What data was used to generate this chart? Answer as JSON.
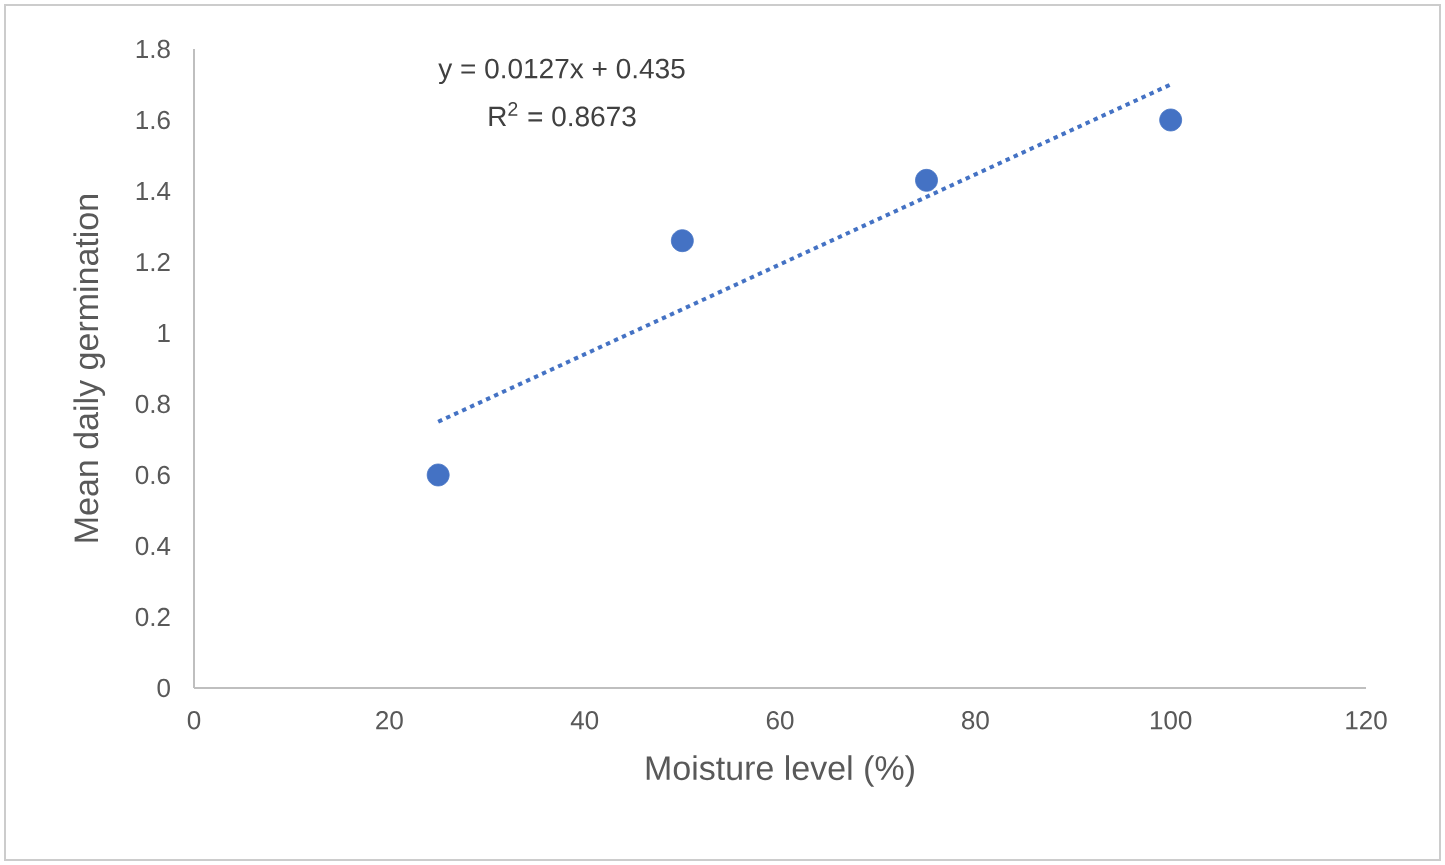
{
  "chart_data": {
    "type": "scatter",
    "xlabel": "Moisture level (%)",
    "ylabel": "Mean daily germination",
    "xlim": [
      0,
      120
    ],
    "xticks": [
      0,
      20,
      40,
      60,
      80,
      100,
      120
    ],
    "ylim": [
      0,
      1.8
    ],
    "yticks": [
      0,
      0.2,
      0.4,
      0.6,
      0.8,
      1,
      1.2,
      1.4,
      1.6,
      1.8
    ],
    "annotations": [
      "y = 0.0127x + 0.435",
      "R$^{2}$ = 0.8673"
    ],
    "series": [
      {
        "color": "#4472c4",
        "marker": "circle",
        "x": [
          25,
          50,
          75,
          100
        ],
        "values": [
          0.6,
          1.26,
          1.43,
          1.6
        ]
      },
      {
        "type": "line",
        "color": "#4472c4",
        "marker": "none",
        "line_style": "dotted",
        "x": [
          25,
          100
        ],
        "values": [
          0.75,
          1.7
        ]
      }
    ]
  }
}
